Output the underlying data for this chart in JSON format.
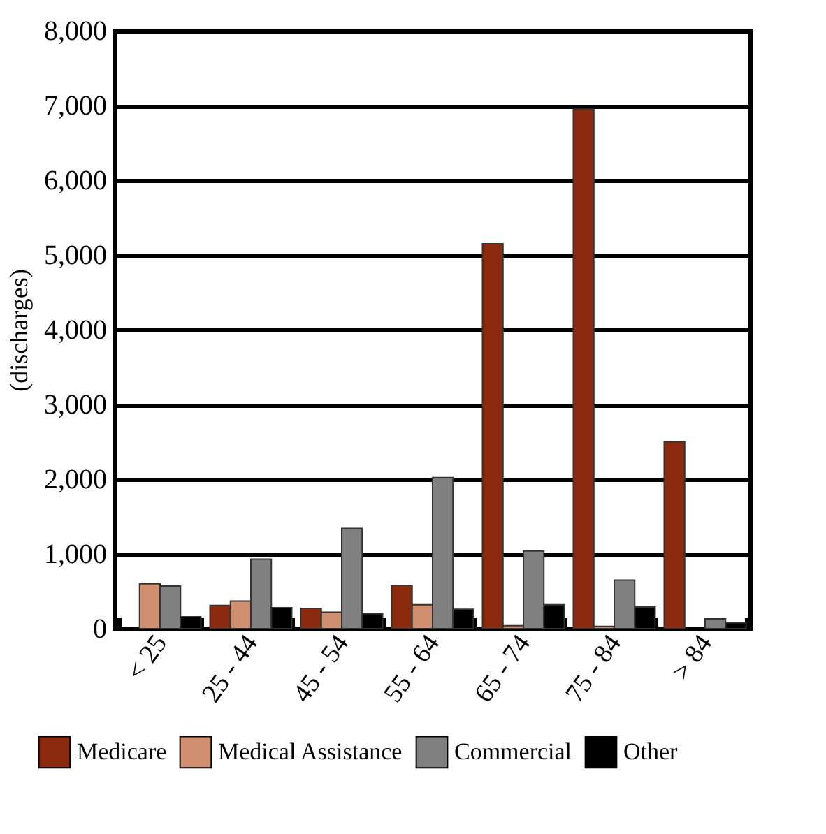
{
  "chart_data": {
    "type": "bar",
    "ylabel": "(discharges)",
    "categories": [
      "< 25",
      "25 - 44",
      "45 - 54",
      "55 - 64",
      "65 - 74",
      "75 - 84",
      "> 84"
    ],
    "series": [
      {
        "name": "Medicare",
        "color": "#8b2a0e",
        "values": [
          0,
          310,
          270,
          580,
          5150,
          6950,
          2500
        ]
      },
      {
        "name": "Medical Assistance",
        "color": "#d09070",
        "values": [
          600,
          370,
          220,
          320,
          40,
          30,
          0
        ]
      },
      {
        "name": "Commercial",
        "color": "#808080",
        "values": [
          570,
          930,
          1340,
          2020,
          1040,
          650,
          130
        ]
      },
      {
        "name": "Other",
        "color": "#000000",
        "values": [
          160,
          280,
          200,
          260,
          320,
          290,
          80
        ]
      }
    ],
    "ylim": [
      0,
      8000
    ],
    "yticks": [
      0,
      {
        "value": 1000,
        "label": "1,000"
      },
      {
        "value": 2000,
        "label": "2,000"
      },
      {
        "value": 3000,
        "label": "3,000"
      },
      {
        "value": 4000,
        "label": "4,000"
      },
      {
        "value": 5000,
        "label": "5,000"
      },
      {
        "value": 6000,
        "label": "6,000"
      },
      {
        "value": 7000,
        "label": "7,000"
      },
      {
        "value": 8000,
        "label": "8,000"
      }
    ],
    "grid": "y",
    "legend": "bottom"
  }
}
